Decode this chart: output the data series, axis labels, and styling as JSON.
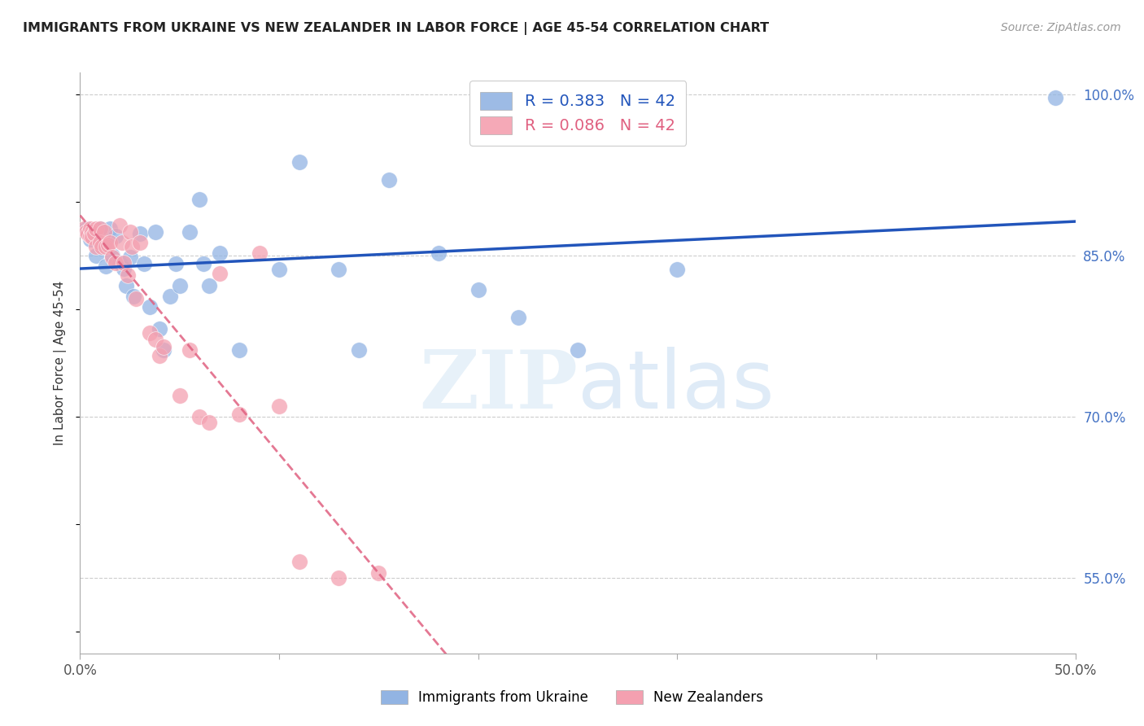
{
  "title": "IMMIGRANTS FROM UKRAINE VS NEW ZEALANDER IN LABOR FORCE | AGE 45-54 CORRELATION CHART",
  "source": "Source: ZipAtlas.com",
  "ylabel": "In Labor Force | Age 45-54",
  "xlim": [
    0.0,
    0.5
  ],
  "ylim": [
    0.48,
    1.02
  ],
  "ytick_vals": [
    0.55,
    0.7,
    0.85,
    1.0
  ],
  "ytick_labels": [
    "55.0%",
    "70.0%",
    "85.0%",
    "100.0%"
  ],
  "xtick_vals": [
    0.0,
    0.1,
    0.2,
    0.3,
    0.4,
    0.5
  ],
  "xtick_labels": [
    "0.0%",
    "",
    "",
    "",
    "",
    "50.0%"
  ],
  "R_ukraine": 0.383,
  "N_ukraine": 42,
  "R_nz": 0.086,
  "N_nz": 42,
  "ukraine_color": "#92B4E3",
  "nz_color": "#F4A0B0",
  "ukraine_line_color": "#2255BB",
  "nz_line_color": "#E06080",
  "legend_label_ukraine": "Immigrants from Ukraine",
  "legend_label_nz": "New Zealanders",
  "ukraine_scatter_x": [
    0.003,
    0.004,
    0.005,
    0.006,
    0.008,
    0.01,
    0.012,
    0.013,
    0.015,
    0.016,
    0.018,
    0.02,
    0.022,
    0.023,
    0.025,
    0.027,
    0.03,
    0.032,
    0.035,
    0.038,
    0.04,
    0.042,
    0.045,
    0.048,
    0.05,
    0.055,
    0.06,
    0.062,
    0.065,
    0.07,
    0.08,
    0.1,
    0.11,
    0.13,
    0.14,
    0.155,
    0.18,
    0.2,
    0.22,
    0.25,
    0.3,
    0.49
  ],
  "ukraine_scatter_y": [
    0.875,
    0.87,
    0.865,
    0.87,
    0.85,
    0.875,
    0.86,
    0.84,
    0.875,
    0.85,
    0.868,
    0.843,
    0.838,
    0.822,
    0.848,
    0.812,
    0.87,
    0.842,
    0.802,
    0.872,
    0.782,
    0.762,
    0.812,
    0.842,
    0.822,
    0.872,
    0.902,
    0.842,
    0.822,
    0.852,
    0.762,
    0.837,
    0.937,
    0.837,
    0.762,
    0.92,
    0.852,
    0.818,
    0.792,
    0.762,
    0.837,
    0.997
  ],
  "nz_scatter_x": [
    0.002,
    0.003,
    0.004,
    0.005,
    0.005,
    0.006,
    0.006,
    0.007,
    0.008,
    0.008,
    0.01,
    0.01,
    0.011,
    0.012,
    0.013,
    0.014,
    0.015,
    0.016,
    0.018,
    0.02,
    0.021,
    0.022,
    0.024,
    0.025,
    0.026,
    0.028,
    0.03,
    0.035,
    0.038,
    0.04,
    0.042,
    0.05,
    0.055,
    0.06,
    0.065,
    0.07,
    0.08,
    0.09,
    0.1,
    0.11,
    0.13,
    0.15
  ],
  "nz_scatter_y": [
    0.875,
    0.872,
    0.87,
    0.875,
    0.868,
    0.872,
    0.867,
    0.87,
    0.875,
    0.858,
    0.875,
    0.862,
    0.858,
    0.872,
    0.858,
    0.86,
    0.862,
    0.848,
    0.843,
    0.878,
    0.862,
    0.843,
    0.832,
    0.872,
    0.858,
    0.81,
    0.862,
    0.778,
    0.772,
    0.757,
    0.765,
    0.72,
    0.762,
    0.7,
    0.695,
    0.833,
    0.702,
    0.852,
    0.71,
    0.565,
    0.55,
    0.555
  ]
}
